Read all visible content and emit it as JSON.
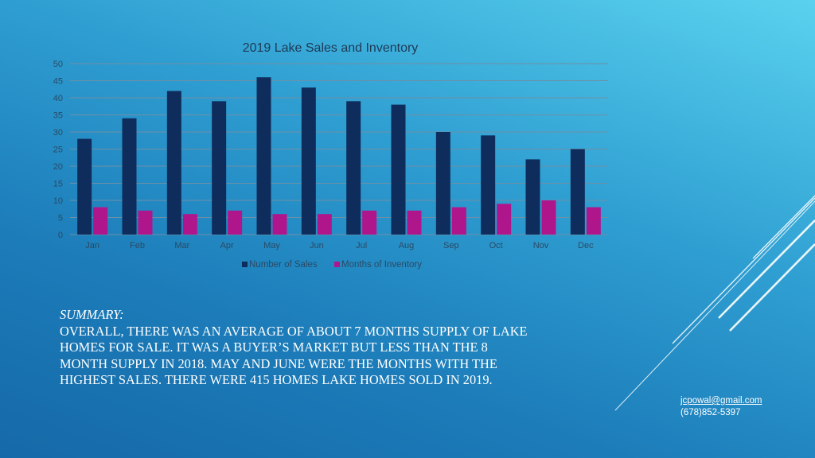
{
  "chart_data": {
    "type": "bar",
    "title": "2019 Lake Sales and Inventory",
    "categories": [
      "Jan",
      "Feb",
      "Mar",
      "Apr",
      "May",
      "Jun",
      "Jul",
      "Aug",
      "Sep",
      "Oct",
      "Nov",
      "Dec"
    ],
    "series": [
      {
        "name": "Number of Sales",
        "color": "#0f2d5c",
        "values": [
          28,
          34,
          42,
          39,
          46,
          43,
          39,
          38,
          30,
          29,
          22,
          25
        ]
      },
      {
        "name": "Months of Inventory",
        "color": "#b0168c",
        "values": [
          8,
          7,
          6,
          7,
          6,
          6,
          7,
          7,
          8,
          9,
          10,
          8
        ]
      }
    ],
    "yticks": [
      "0",
      "5",
      "10",
      "15",
      "20",
      "25",
      "30",
      "35",
      "40",
      "45",
      "50"
    ],
    "ylim": [
      0,
      50
    ],
    "grid": true,
    "legend": "bottom",
    "xlabel": "",
    "ylabel": ""
  },
  "summary": {
    "heading": "SUMMARY:",
    "lines": [
      "OVERALL, THERE WAS AN AVERAGE OF ABOUT 7 MONTHS SUPPLY OF LAKE",
      "HOMES FOR SALE.    IT WAS A BUYER’S MARKET BUT LESS THAN THE 8",
      "MONTH SUPPLY IN 2018.  MAY AND JUNE WERE THE MONTHS WITH THE",
      "HIGHEST SALES.  THERE WERE 415 HOMES LAKE HOMES SOLD IN 2019."
    ]
  },
  "contact": {
    "email": "jcpowal@gmail.com",
    "phone": "(678)852-5397"
  }
}
